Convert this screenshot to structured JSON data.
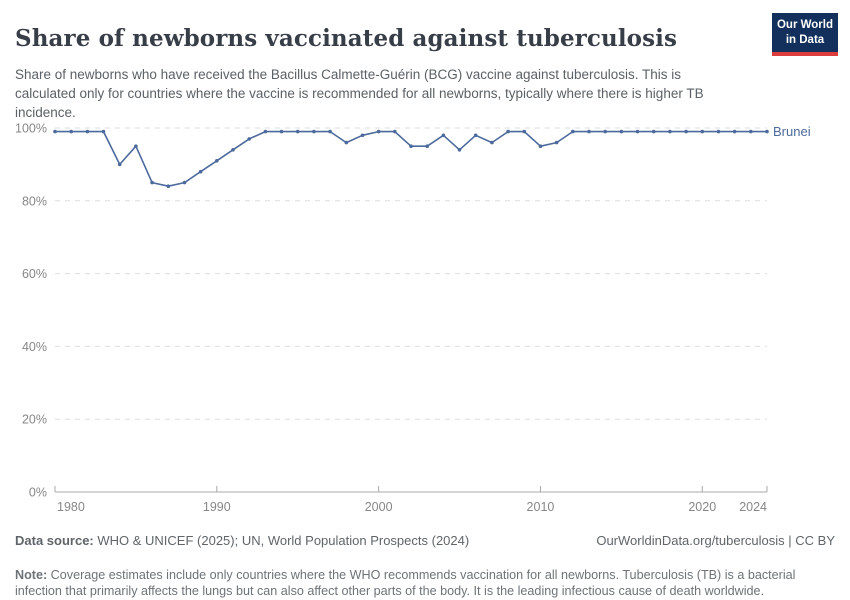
{
  "logo": {
    "line1": "Our World",
    "line2": "in Data",
    "bg_color": "#12305B",
    "stripe_color": "#DC3C3C"
  },
  "header": {
    "title": "Share of newborns vaccinated against tuberculosis",
    "subtitle": "Share of newborns who have received the Bacillus Calmette-Guérin (BCG) vaccine against tuberculosis. This is calculated only for countries where the vaccine is recommended for all newborns, typically where there is higher TB incidence."
  },
  "chart_data": {
    "type": "line",
    "title": "Share of newborns vaccinated against tuberculosis",
    "x": [
      1980,
      1981,
      1982,
      1983,
      1984,
      1985,
      1986,
      1987,
      1988,
      1989,
      1990,
      1991,
      1992,
      1993,
      1994,
      1995,
      1996,
      1997,
      1998,
      1999,
      2000,
      2001,
      2002,
      2003,
      2004,
      2005,
      2006,
      2007,
      2008,
      2009,
      2010,
      2011,
      2012,
      2013,
      2014,
      2015,
      2016,
      2017,
      2018,
      2019,
      2020,
      2021,
      2022,
      2023,
      2024
    ],
    "series": [
      {
        "name": "Brunei",
        "color": "#4C6A9C",
        "values": [
          99,
          99,
          99,
          99,
          90,
          95,
          85,
          84,
          85,
          88,
          91,
          94,
          97,
          99,
          99,
          99,
          99,
          99,
          96,
          98,
          99,
          99,
          95,
          95,
          98,
          94,
          98,
          96,
          99,
          99,
          95,
          96,
          99,
          99,
          99,
          99,
          99,
          99,
          99,
          99,
          99,
          99,
          99,
          99,
          99
        ]
      }
    ],
    "ylim": [
      0,
      100
    ],
    "yticks": [
      0,
      20,
      40,
      60,
      80,
      100
    ],
    "ytick_suffix": "%",
    "xticks": [
      1980,
      1990,
      2000,
      2010,
      2020,
      2024
    ],
    "xlabel": "",
    "ylabel": "",
    "grid": "horizontal-dashed",
    "legend_position": "line-end-label",
    "colors": {
      "gridline": "#DDDDDD",
      "axis": "#A8A8A8",
      "tick_label": "#878787"
    }
  },
  "footer": {
    "datasource_label": "Data source:",
    "datasource_value": " WHO & UNICEF (2025); UN, World Population Prospects (2024)",
    "rights": "OurWorldinData.org/tuberculosis | CC BY",
    "note_label": "Note:",
    "note_text": " Coverage estimates include only countries where the WHO recommends vaccination for all newborns. Tuberculosis (TB) is a bacterial infection that primarily affects the lungs but can also affect other parts of the body. It is the leading infectious cause of death worldwide."
  }
}
